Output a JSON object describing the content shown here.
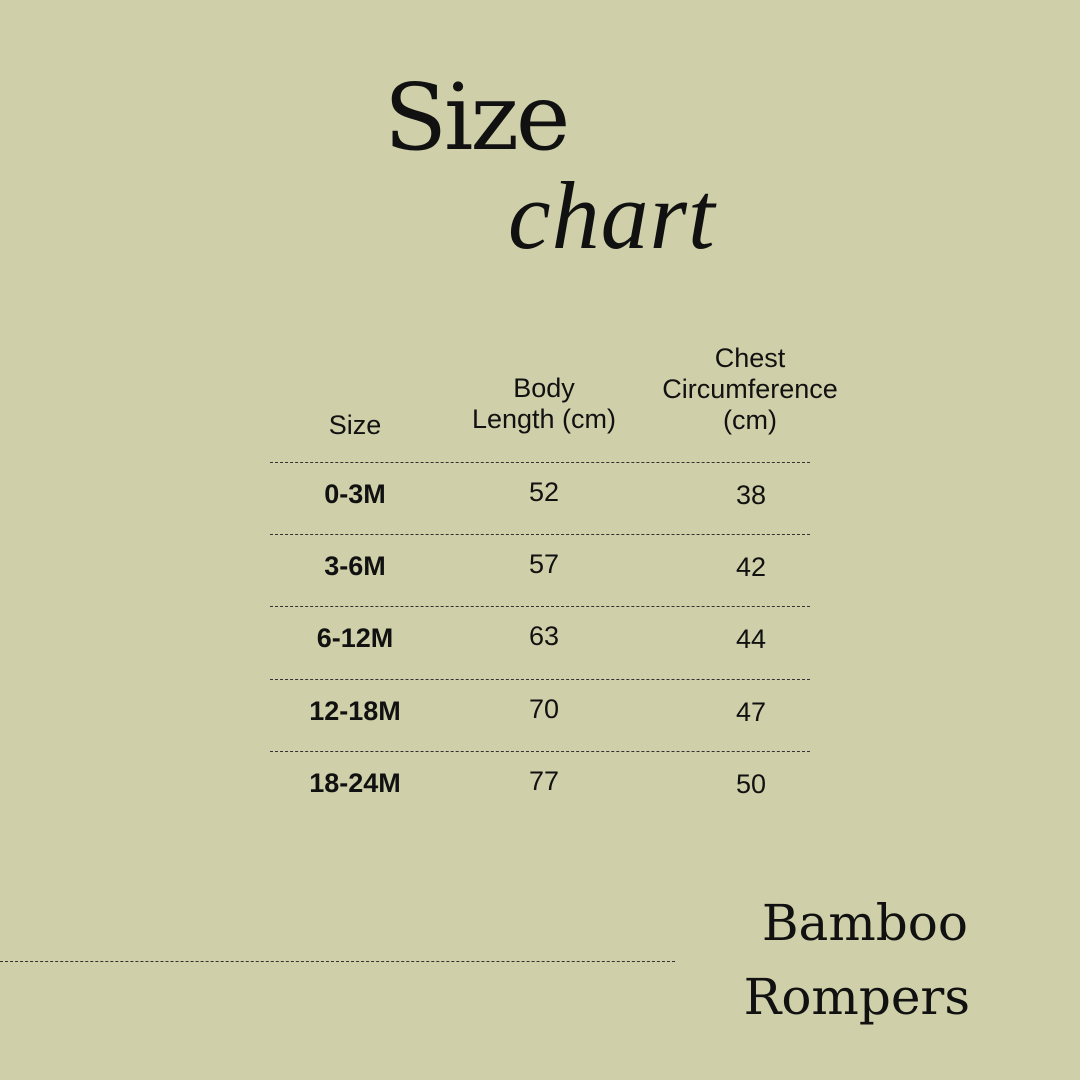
{
  "title": {
    "line1": "Size",
    "line2": "chart"
  },
  "table": {
    "headers": [
      "Size",
      "Body Length (cm)",
      "Chest Circumference (cm)"
    ],
    "header_lines": [
      [
        "Size"
      ],
      [
        "Body",
        "Length (cm)"
      ],
      [
        "Chest",
        "Circumference",
        "(cm)"
      ]
    ],
    "rows": [
      {
        "size": "0-3M",
        "body_length": "52",
        "chest": "38"
      },
      {
        "size": "3-6M",
        "body_length": "57",
        "chest": "42"
      },
      {
        "size": "6-12M",
        "body_length": "63",
        "chest": "44"
      },
      {
        "size": "12-18M",
        "body_length": "70",
        "chest": "47"
      },
      {
        "size": "18-24M",
        "body_length": "77",
        "chest": "50"
      }
    ]
  },
  "footer": {
    "line1": "Bamboo",
    "line2": "Rompers"
  },
  "colors": {
    "background": "#cfcfa9",
    "text": "#111111"
  }
}
